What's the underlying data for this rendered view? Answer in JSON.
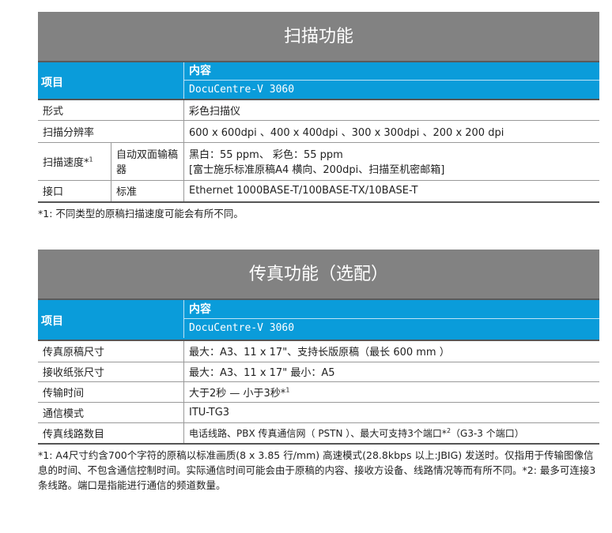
{
  "scan": {
    "title": "扫描功能",
    "header": {
      "item": "项目",
      "content": "内容",
      "model": "DocuCentre-V  3060"
    },
    "rows": [
      {
        "label": "形式",
        "value": "彩色扫描仪"
      },
      {
        "label": "扫描分辨率",
        "value": "600 x 600dpi 、400 x 400dpi 、300 x 300dpi 、200 x 200 dpi"
      },
      {
        "label": "扫描速度*",
        "sup": "1",
        "sub": "自动双面输稿器",
        "value": "黑白：55 ppm、 彩色：55 ppm",
        "value2": "[富士施乐标准原稿A4 横向、200dpi、扫描至机密邮箱]"
      },
      {
        "label": "接口",
        "sub": "标准",
        "value": "Ethernet 1000BASE-T/100BASE-TX/10BASE-T"
      }
    ],
    "note": "*1: 不同类型的原稿扫描速度可能会有所不同。"
  },
  "fax": {
    "title": "传真功能（选配）",
    "header": {
      "item": "项目",
      "content": "内容",
      "model": "DocuCentre-V  3060"
    },
    "rows": [
      {
        "label": "传真原稿尺寸",
        "value": "最大：A3、11 x 17\"、支持长版原稿（最长 600 mm ）"
      },
      {
        "label": "接收纸张尺寸",
        "value": "最大：A3、11 x 17\" 最小：A5"
      },
      {
        "label": "传输时间",
        "value": "大于2秒  —  小于3秒*",
        "sup": "1"
      },
      {
        "label": "通信模式",
        "value": "ITU-TG3"
      },
      {
        "label": "传真线路数目",
        "value": "电话线路、PBX  传真通信网（ PSTN  ）、最大可支持3个端口*",
        "sup": "2",
        "value2": "（G3-3  个端口）"
      }
    ],
    "note": "*1: A4尺寸约含700个字符的原稿以标准画质(8 x 3.85   行/mm) 高速模式(28.8kbps 以上:JBIG) 发送时。仅指用于传输图像信息的时间、不包含通信控制时间。实际通信时间可能会由于原稿的内容、接收方设备、线路情况等而有所不同。*2:   最多可连接3条线路。端口是指能进行通信的频道数量。"
  }
}
